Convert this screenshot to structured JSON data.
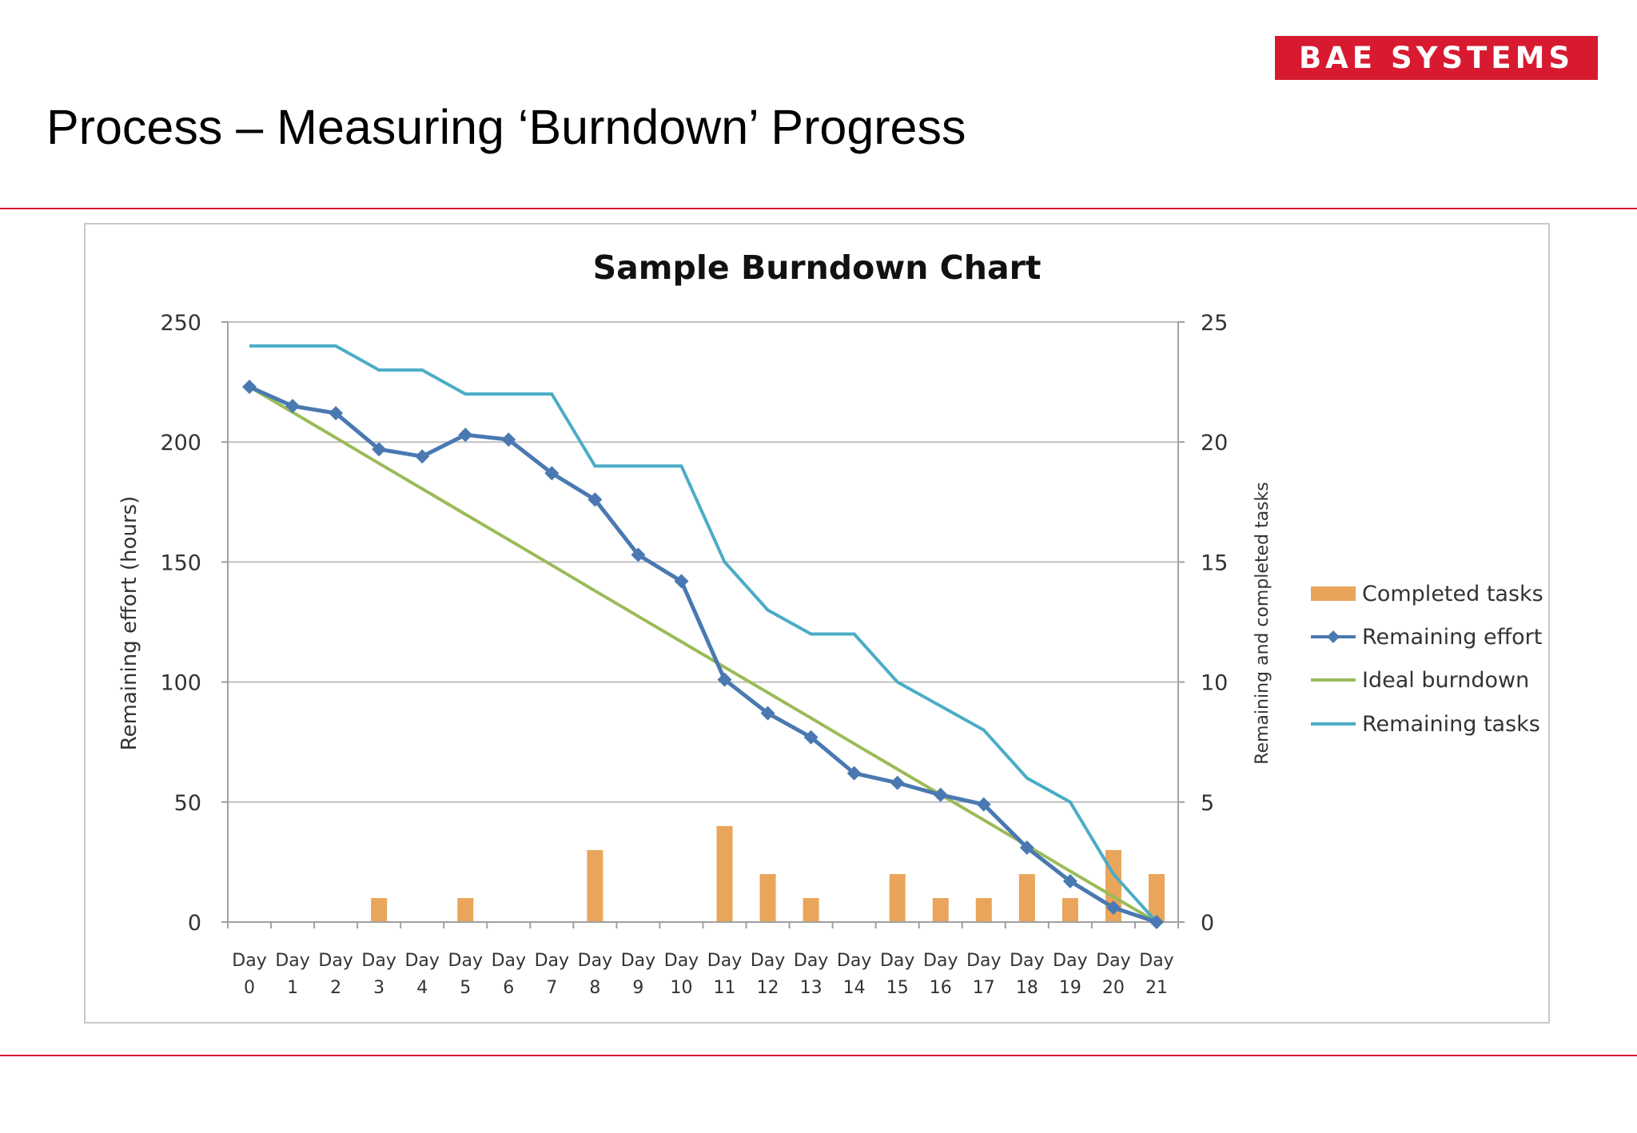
{
  "header": {
    "logo_text": "BAE SYSTEMS",
    "slide_title": "Process – Measuring ‘Burndown’ Progress"
  },
  "colors": {
    "brand_red": "#d71a30",
    "completed_tasks": "#e9a55b",
    "remaining_effort": "#4a79b1",
    "ideal_burndown": "#9bbb59",
    "remaining_tasks": "#4bacc6",
    "gridline": "#c0c0c0"
  },
  "chart_data": {
    "type": "bar",
    "title": "Sample Burndown Chart",
    "ylabel": "Remaining effort (hours)",
    "y2label": "Remaining and completed tasks",
    "ylim": [
      0,
      250
    ],
    "y2lim": [
      0,
      25
    ],
    "yticks": [
      "0",
      "50",
      "100",
      "150",
      "200",
      "250"
    ],
    "y2ticks": [
      "0",
      "5",
      "10",
      "15",
      "20",
      "25"
    ],
    "grid": true,
    "legend_position": "right",
    "categories": [
      "Day 0",
      "Day 1",
      "Day 2",
      "Day 3",
      "Day 4",
      "Day 5",
      "Day 6",
      "Day 7",
      "Day 8",
      "Day 9",
      "Day 10",
      "Day 11",
      "Day 12",
      "Day 13",
      "Day 14",
      "Day 15",
      "Day 16",
      "Day 17",
      "Day 18",
      "Day 19",
      "Day 20",
      "Day 21"
    ],
    "series": [
      {
        "name": "Completed tasks",
        "type": "bar",
        "axis": "right",
        "values": [
          0,
          0,
          0,
          1,
          0,
          1,
          0,
          0,
          3,
          0,
          0,
          4,
          2,
          1,
          0,
          2,
          1,
          1,
          2,
          1,
          3,
          2
        ]
      },
      {
        "name": "Remaining effort",
        "type": "line",
        "marker": "diamond",
        "axis": "left",
        "values": [
          223,
          215,
          212,
          197,
          194,
          203,
          201,
          187,
          176,
          153,
          142,
          101,
          87,
          77,
          62,
          58,
          53,
          49,
          31,
          17,
          6,
          0
        ]
      },
      {
        "name": "Ideal burndown",
        "type": "line",
        "axis": "left",
        "values": [
          223,
          212.4,
          201.8,
          191.1,
          180.5,
          169.9,
          159.3,
          148.7,
          138,
          127.4,
          116.8,
          106.2,
          95.6,
          85,
          74.3,
          63.7,
          53.1,
          42.5,
          31.9,
          21.2,
          10.6,
          0
        ]
      },
      {
        "name": "Remaining tasks",
        "type": "line",
        "axis": "right",
        "values": [
          24,
          24,
          24,
          23,
          23,
          22,
          22,
          22,
          19,
          19,
          19,
          15,
          13,
          12,
          12,
          10,
          9,
          8,
          6,
          5,
          2,
          0
        ]
      }
    ]
  }
}
